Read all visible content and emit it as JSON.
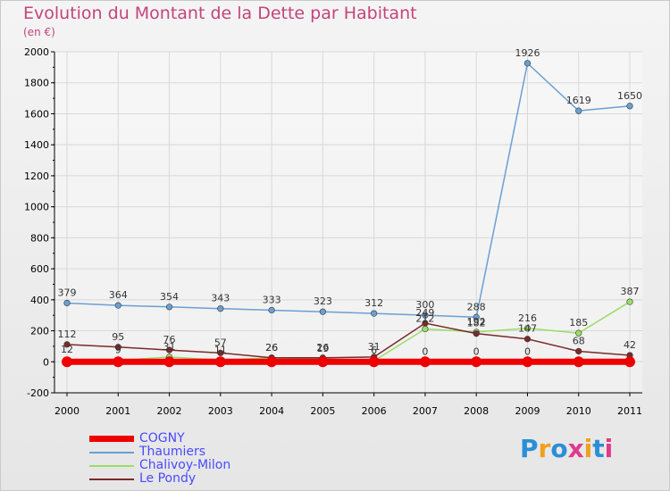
{
  "title": "Evolution du Montant de la Dette par Habitant",
  "subtitle": "(en €)",
  "logo": "Proxiti",
  "chart_data": {
    "type": "line",
    "categories": [
      "2000",
      "2001",
      "2002",
      "2003",
      "2004",
      "2005",
      "2006",
      "2007",
      "2008",
      "2009",
      "2010",
      "2011"
    ],
    "y_ticks": [
      -200,
      0,
      200,
      400,
      600,
      800,
      1000,
      1200,
      1400,
      1600,
      1800,
      2000
    ],
    "ylim": [
      -200,
      2000
    ],
    "series": [
      {
        "name": "COGNY",
        "color": "#ee0000",
        "thick": true,
        "values": [
          0,
          0,
          0,
          0,
          0,
          0,
          0,
          0,
          0,
          0,
          0,
          0
        ],
        "labels": [
          "",
          "",
          "",
          "",
          "",
          "",
          "",
          "0",
          "0",
          "0",
          "",
          ""
        ]
      },
      {
        "name": "Thaumiers",
        "color": "#6b9fd3",
        "thick": false,
        "values": [
          379,
          364,
          354,
          343,
          333,
          323,
          312,
          300,
          288,
          1926,
          1619,
          1650
        ],
        "labels": [
          "379",
          "364",
          "354",
          "343",
          "333",
          "323",
          "312",
          "300",
          "288",
          "1926",
          "1619",
          "1650"
        ]
      },
      {
        "name": "Chalivoy-Milon",
        "color": "#99dd66",
        "thick": false,
        "values": [
          12,
          9,
          31,
          11,
          26,
          19,
          6,
          212,
          192,
          216,
          185,
          387
        ],
        "labels": [
          "12",
          "9",
          "31",
          "11",
          "26",
          "19",
          "6",
          "212",
          "192",
          "216",
          "185",
          "387"
        ]
      },
      {
        "name": "Le Pondy",
        "color": "#7a2a2a",
        "thick": false,
        "values": [
          112,
          95,
          76,
          57,
          26,
          26,
          31,
          249,
          182,
          147,
          68,
          42
        ],
        "labels": [
          "112",
          "95",
          "76",
          "57",
          "26",
          "26",
          "31",
          "249",
          "182",
          "147",
          "68",
          "42"
        ]
      }
    ]
  }
}
